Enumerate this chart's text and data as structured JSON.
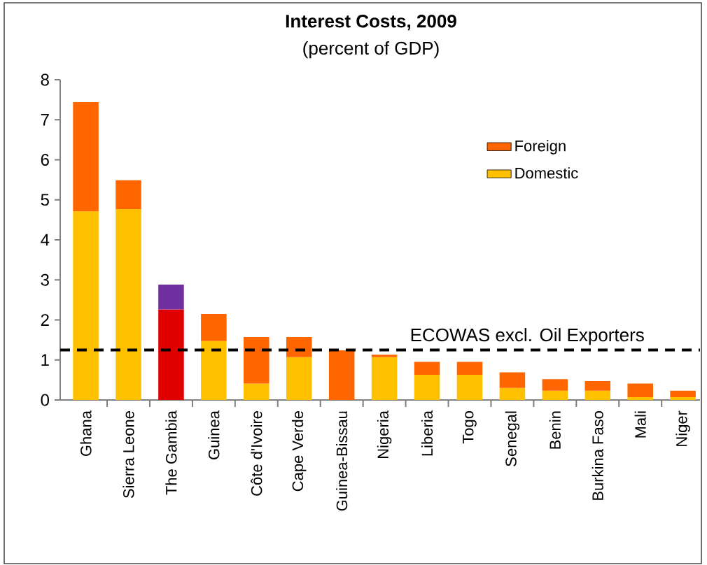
{
  "chart_data": {
    "type": "bar",
    "stacked": true,
    "title": "Interest Costs, 2009",
    "subtitle": "(percent of GDP)",
    "categories": [
      "Ghana",
      "Sierra Leone",
      "The Gambia",
      "Guinea",
      "Côte d'Ivoire",
      "Cape Verde",
      "Guinea-Bissau",
      "Nigeria",
      "Liberia",
      "Togo",
      "Senegal",
      "Benin",
      "Burkina Faso",
      "Mali",
      "Niger"
    ],
    "series": [
      {
        "name": "Domestic",
        "color": "#ffc000",
        "colors": [
          "#ffc000",
          "#ffc000",
          "#e00000",
          "#ffc000",
          "#ffc000",
          "#ffc000",
          "#ffc000",
          "#ffc000",
          "#ffc000",
          "#ffc000",
          "#ffc000",
          "#ffc000",
          "#ffc000",
          "#ffc000",
          "#ffc000"
        ],
        "values": [
          4.71,
          4.77,
          2.26,
          1.47,
          0.41,
          1.07,
          0,
          1.07,
          0.63,
          0.63,
          0.3,
          0.23,
          0.23,
          0.07,
          0.07
        ]
      },
      {
        "name": "Foreign",
        "color": "#ff6600",
        "colors": [
          "#ff6600",
          "#ff6600",
          "#7030a0",
          "#ff6600",
          "#ff6600",
          "#ff6600",
          "#ff6600",
          "#ff6600",
          "#ff6600",
          "#ff6600",
          "#ff6600",
          "#ff6600",
          "#ff6600",
          "#ff6600",
          "#ff6600"
        ],
        "values": [
          2.73,
          0.72,
          0.62,
          0.68,
          1.16,
          0.5,
          1.24,
          0.06,
          0.32,
          0.32,
          0.39,
          0.29,
          0.24,
          0.34,
          0.16
        ]
      }
    ],
    "ylim": [
      0,
      8
    ],
    "yticks": [
      0,
      1,
      2,
      3,
      4,
      5,
      6,
      7,
      8
    ],
    "ref_lines": [
      {
        "axis": "y",
        "value": 1.25,
        "label": "ECOWAS excl. Oil Exporters",
        "color": "#000000",
        "line_style": "dashed"
      }
    ],
    "legend": "top right",
    "grid": false
  }
}
